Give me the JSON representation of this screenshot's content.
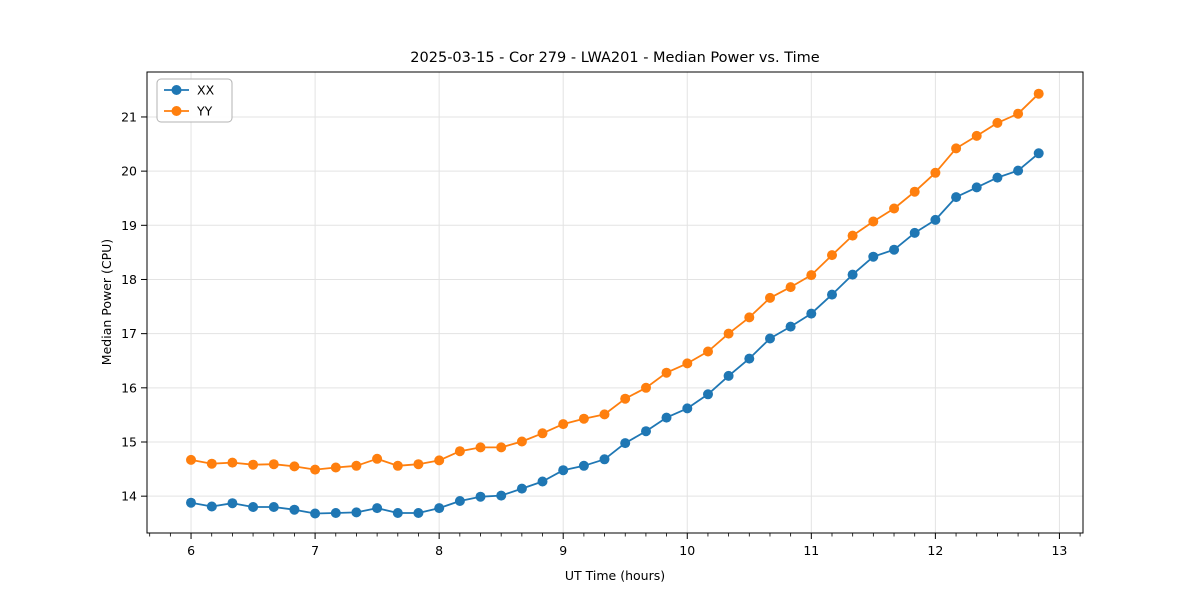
{
  "chart_data": {
    "type": "line",
    "title": "2025-03-15 - Cor 279 - LWA201 - Median Power vs. Time",
    "xlabel": "UT Time (hours)",
    "ylabel": "Median Power (CPU)",
    "xlim": [
      5.645,
      13.19
    ],
    "ylim": [
      13.32,
      21.83
    ],
    "xticks": [
      6,
      7,
      8,
      9,
      10,
      11,
      12,
      13
    ],
    "yticks": [
      14,
      15,
      16,
      17,
      18,
      19,
      20,
      21
    ],
    "x_minor_step": 0.166667,
    "grid": true,
    "legend_position": "upper-left",
    "colors": {
      "xx": "#1f77b4",
      "yy": "#ff7f0e",
      "grid": "#e3e3e3",
      "spine": "#000000",
      "legend_border": "#b3b3b3"
    },
    "x": [
      6.0,
      6.167,
      6.333,
      6.5,
      6.667,
      6.833,
      7.0,
      7.167,
      7.333,
      7.5,
      7.667,
      7.833,
      8.0,
      8.167,
      8.333,
      8.5,
      8.667,
      8.833,
      9.0,
      9.167,
      9.333,
      9.5,
      9.667,
      9.833,
      10.0,
      10.167,
      10.333,
      10.5,
      10.667,
      10.833,
      11.0,
      11.167,
      11.333,
      11.5,
      11.667,
      11.833,
      12.0,
      12.167,
      12.333,
      12.5,
      12.667,
      12.833
    ],
    "series": [
      {
        "name": "XX",
        "color": "#1f77b4",
        "values": [
          13.88,
          13.81,
          13.87,
          13.8,
          13.8,
          13.75,
          13.68,
          13.69,
          13.7,
          13.78,
          13.69,
          13.69,
          13.78,
          13.91,
          13.99,
          14.01,
          14.14,
          14.27,
          14.48,
          14.56,
          14.68,
          14.98,
          15.2,
          15.45,
          15.62,
          15.88,
          16.22,
          16.54,
          16.91,
          17.13,
          17.37,
          17.72,
          18.09,
          18.42,
          18.55,
          18.86,
          19.1,
          19.52,
          19.7,
          19.88,
          20.01,
          20.33
        ]
      },
      {
        "name": "YY",
        "color": "#ff7f0e",
        "values": [
          14.67,
          14.6,
          14.62,
          14.58,
          14.59,
          14.55,
          14.49,
          14.53,
          14.56,
          14.69,
          14.56,
          14.59,
          14.66,
          14.83,
          14.9,
          14.9,
          15.01,
          15.16,
          15.33,
          15.43,
          15.51,
          15.8,
          16.0,
          16.28,
          16.45,
          16.67,
          17.0,
          17.3,
          17.66,
          17.86,
          18.08,
          18.45,
          18.81,
          19.07,
          19.31,
          19.62,
          19.97,
          20.42,
          20.65,
          20.89,
          21.06,
          21.43
        ]
      }
    ]
  }
}
